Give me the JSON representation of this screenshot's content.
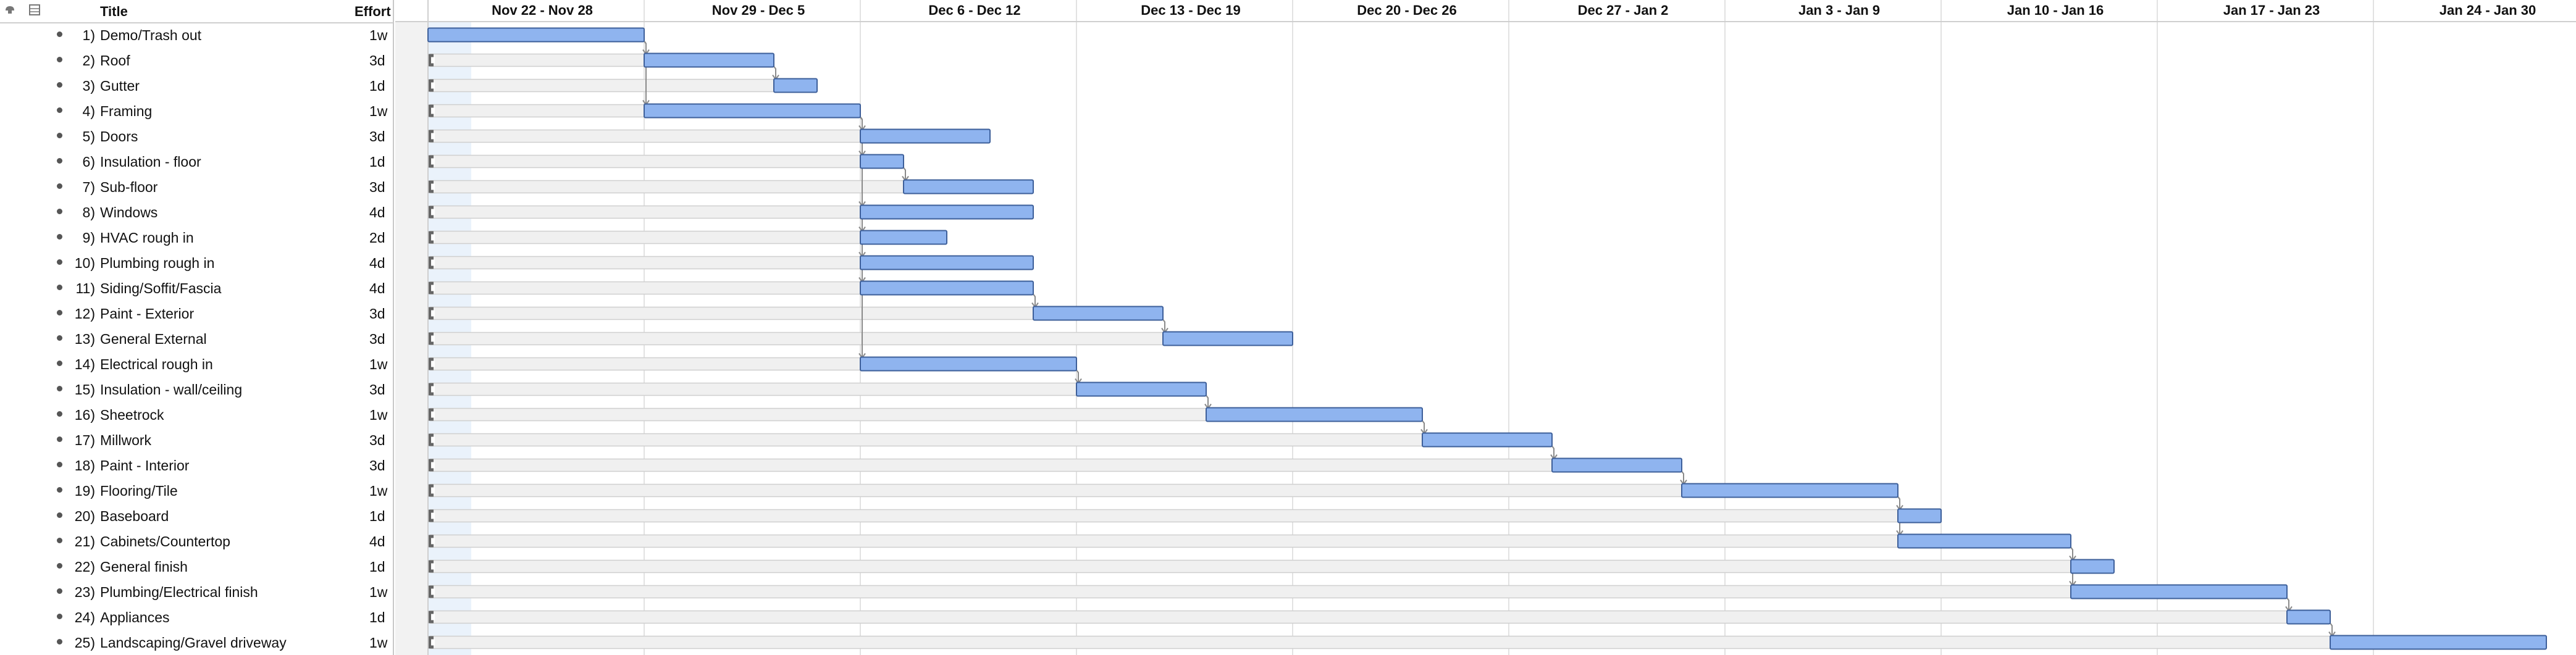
{
  "toolbar": {
    "left_icon": "view-options-icon",
    "right_icon": "outline-columns-icon"
  },
  "outline": {
    "title_header": "Title",
    "effort_header": "Effort",
    "rows": [
      {
        "num": "1)",
        "title": "Demo/Trash out",
        "effort": "1w"
      },
      {
        "num": "2)",
        "title": "Roof",
        "effort": "3d"
      },
      {
        "num": "3)",
        "title": "Gutter",
        "effort": "1d"
      },
      {
        "num": "4)",
        "title": "Framing",
        "effort": "1w"
      },
      {
        "num": "5)",
        "title": "Doors",
        "effort": "3d"
      },
      {
        "num": "6)",
        "title": "Insulation - floor",
        "effort": "1d"
      },
      {
        "num": "7)",
        "title": "Sub-floor",
        "effort": "3d"
      },
      {
        "num": "8)",
        "title": "Windows",
        "effort": "4d"
      },
      {
        "num": "9)",
        "title": "HVAC rough in",
        "effort": "2d"
      },
      {
        "num": "10)",
        "title": "Plumbing rough in",
        "effort": "4d"
      },
      {
        "num": "11)",
        "title": "Siding/Soffit/Fascia",
        "effort": "4d"
      },
      {
        "num": "12)",
        "title": "Paint - Exterior",
        "effort": "3d"
      },
      {
        "num": "13)",
        "title": "General External",
        "effort": "3d"
      },
      {
        "num": "14)",
        "title": "Electrical rough in",
        "effort": "1w"
      },
      {
        "num": "15)",
        "title": "Insulation - wall/ceiling",
        "effort": "3d"
      },
      {
        "num": "16)",
        "title": "Sheetrock",
        "effort": "1w"
      },
      {
        "num": "17)",
        "title": "Millwork",
        "effort": "3d"
      },
      {
        "num": "18)",
        "title": "Paint - Interior",
        "effort": "3d"
      },
      {
        "num": "19)",
        "title": "Flooring/Tile",
        "effort": "1w"
      },
      {
        "num": "20)",
        "title": "Baseboard",
        "effort": "1d"
      },
      {
        "num": "21)",
        "title": "Cabinets/Countertop",
        "effort": "4d"
      },
      {
        "num": "22)",
        "title": "General finish",
        "effort": "1d"
      },
      {
        "num": "23)",
        "title": "Plumbing/Electrical finish",
        "effort": "1w"
      },
      {
        "num": "24)",
        "title": "Appliances",
        "effort": "1d"
      },
      {
        "num": "25)",
        "title": "Landscaping/Gravel driveway",
        "effort": "1w"
      }
    ]
  },
  "gantt": {
    "weeks": [
      "Nov 22 - Nov 28",
      "Nov 29 - Dec 5",
      "Dec 6 - Dec 12",
      "Dec 13 - Dec 19",
      "Dec 20 - Dec 26",
      "Dec 27 - Jan 2",
      "Jan 3 - Jan 9",
      "Jan 10 - Jan 16",
      "Jan 17 - Jan 23",
      "Jan 24 - Jan 30"
    ],
    "tasks": [
      {
        "start": 0,
        "duration": 5,
        "dep": null
      },
      {
        "start": 5,
        "duration": 3,
        "dep": 1
      },
      {
        "start": 8,
        "duration": 1,
        "dep": 2
      },
      {
        "start": 5,
        "duration": 5,
        "dep": 1
      },
      {
        "start": 10,
        "duration": 3,
        "dep": 4
      },
      {
        "start": 10,
        "duration": 1,
        "dep": 4
      },
      {
        "start": 11,
        "duration": 3,
        "dep": 6
      },
      {
        "start": 10,
        "duration": 4,
        "dep": 4
      },
      {
        "start": 10,
        "duration": 2,
        "dep": 4
      },
      {
        "start": 10,
        "duration": 4,
        "dep": 4
      },
      {
        "start": 10,
        "duration": 4,
        "dep": 4
      },
      {
        "start": 14,
        "duration": 3,
        "dep": 11
      },
      {
        "start": 17,
        "duration": 3,
        "dep": 12
      },
      {
        "start": 10,
        "duration": 5,
        "dep": 4
      },
      {
        "start": 15,
        "duration": 3,
        "dep": 14
      },
      {
        "start": 18,
        "duration": 5,
        "dep": 15
      },
      {
        "start": 23,
        "duration": 3,
        "dep": 16
      },
      {
        "start": 26,
        "duration": 3,
        "dep": 17
      },
      {
        "start": 29,
        "duration": 5,
        "dep": 18
      },
      {
        "start": 34,
        "duration": 1,
        "dep": 19
      },
      {
        "start": 34,
        "duration": 4,
        "dep": 19
      },
      {
        "start": 38,
        "duration": 1,
        "dep": 21
      },
      {
        "start": 38,
        "duration": 5,
        "dep": 21
      },
      {
        "start": 43,
        "duration": 1,
        "dep": 23
      },
      {
        "start": 44,
        "duration": 5,
        "dep": 24
      }
    ],
    "colors": {
      "bar": "#8fb4ef",
      "bar_border": "#3d5f9a",
      "slack": "#f0f0f0",
      "slack_border": "#cfcfcf",
      "grid": "#e2e2e2",
      "today": "#eaf2fb"
    }
  }
}
